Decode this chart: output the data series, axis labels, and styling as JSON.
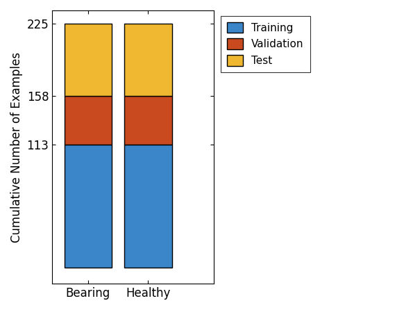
{
  "categories": [
    "Bearing",
    "Healthy"
  ],
  "training": [
    113,
    113
  ],
  "validation": [
    45,
    45
  ],
  "test": [
    67,
    67
  ],
  "training_color": "#3a86c8",
  "validation_color": "#c84a1e",
  "test_color": "#f0b830",
  "ylabel": "Cumulative Number of Examples",
  "yticks": [
    113,
    158,
    225
  ],
  "legend_labels": [
    "Training",
    "Validation",
    "Test"
  ],
  "bar_width": 0.8,
  "edgecolor": "black",
  "edgewidth": 1.0,
  "ylim_bottom": -15,
  "ylim_top": 237,
  "xlim_left": -0.6,
  "xlim_right": 2.1
}
